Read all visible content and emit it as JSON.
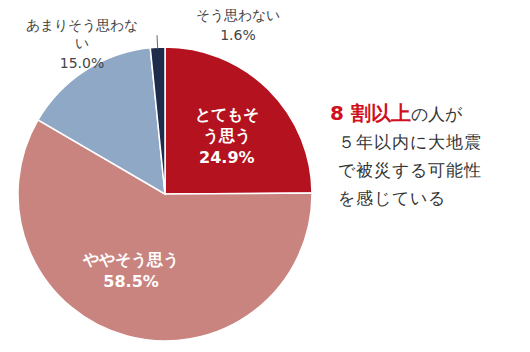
{
  "chart_data": {
    "type": "pie",
    "categories": [
      "とてもそう思う",
      "ややそう思う",
      "あまりそう思わない",
      "そう思わない"
    ],
    "values": [
      24.9,
      58.5,
      15.0,
      1.6
    ],
    "value_labels": [
      "24.9%",
      "58.5%",
      "15.0%",
      "1.6%"
    ],
    "colors": [
      "#b3121e",
      "#c98480",
      "#8fa8c6",
      "#1e2c4c"
    ],
    "data_labels": true,
    "annotation": {
      "emphasis": "8 割以上",
      "lines": [
        "の人が",
        "５年以内に大地震",
        "で被災する可能性",
        "を感じている"
      ]
    }
  }
}
